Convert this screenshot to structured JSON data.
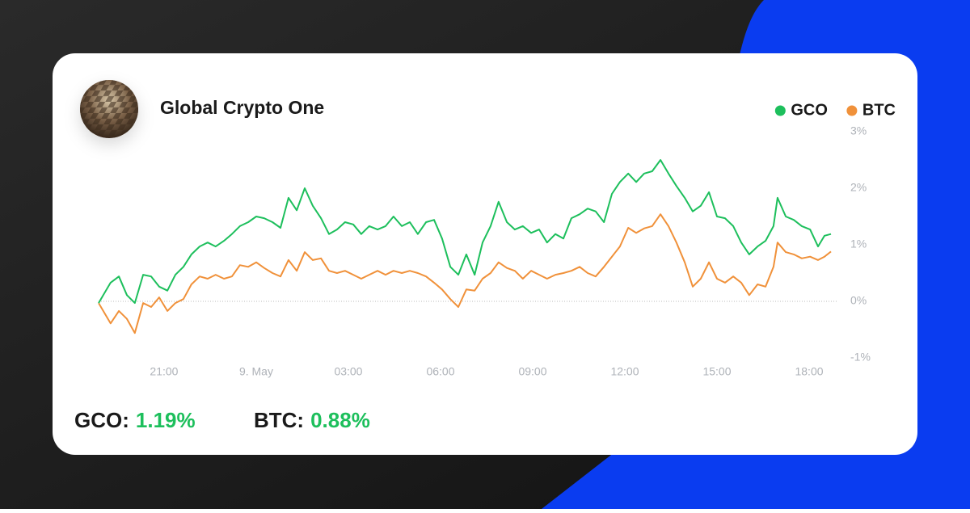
{
  "chart_data": {
    "type": "line",
    "title": "Global Crypto One",
    "x": [
      -5.13,
      -4.74,
      -4.47,
      -4.21,
      -3.95,
      -3.68,
      -3.42,
      -3.16,
      -2.89,
      -2.63,
      -2.37,
      -2.11,
      -1.84,
      -1.58,
      -1.32,
      -1.05,
      -0.79,
      -0.53,
      -0.26,
      0,
      0.26,
      0.53,
      0.79,
      1.05,
      1.32,
      1.58,
      1.84,
      2.11,
      2.37,
      2.63,
      2.89,
      3.16,
      3.42,
      3.68,
      3.95,
      4.21,
      4.47,
      4.74,
      5.0,
      5.26,
      5.53,
      5.79,
      6.05,
      6.32,
      6.58,
      6.84,
      7.11,
      7.37,
      7.63,
      7.89,
      8.16,
      8.42,
      8.68,
      8.95,
      9.21,
      9.47,
      9.74,
      10.0,
      10.26,
      10.53,
      10.79,
      11.05,
      11.32,
      11.58,
      11.84,
      12.11,
      12.37,
      12.63,
      12.89,
      13.16,
      13.42,
      13.68,
      13.95,
      14.21,
      14.47,
      14.74,
      15.0,
      15.26,
      15.53,
      15.79,
      16.05,
      16.32,
      16.58,
      16.84,
      16.97,
      17.24,
      17.5,
      17.76,
      18.03,
      18.29,
      18.5,
      18.71
    ],
    "series": [
      {
        "name": "GCO",
        "color": "#1dbf5c",
        "values": [
          -0.03,
          0.33,
          0.44,
          0.11,
          -0.03,
          0.47,
          0.44,
          0.26,
          0.19,
          0.47,
          0.61,
          0.83,
          0.97,
          1.04,
          0.97,
          1.07,
          1.19,
          1.33,
          1.4,
          1.5,
          1.47,
          1.4,
          1.3,
          1.83,
          1.61,
          2.0,
          1.69,
          1.47,
          1.19,
          1.27,
          1.4,
          1.36,
          1.19,
          1.33,
          1.27,
          1.33,
          1.5,
          1.33,
          1.4,
          1.19,
          1.4,
          1.44,
          1.11,
          0.61,
          0.47,
          0.83,
          0.47,
          1.04,
          1.33,
          1.76,
          1.4,
          1.27,
          1.33,
          1.21,
          1.27,
          1.04,
          1.19,
          1.11,
          1.47,
          1.54,
          1.64,
          1.59,
          1.4,
          1.9,
          2.11,
          2.26,
          2.11,
          2.26,
          2.3,
          2.5,
          2.26,
          2.04,
          1.83,
          1.59,
          1.69,
          1.93,
          1.5,
          1.47,
          1.33,
          1.04,
          0.83,
          0.97,
          1.07,
          1.33,
          1.83,
          1.5,
          1.44,
          1.33,
          1.27,
          0.97,
          1.16,
          1.19
        ]
      },
      {
        "name": "BTC",
        "color": "#f0913a",
        "values": [
          -0.03,
          -0.39,
          -0.17,
          -0.31,
          -0.56,
          -0.03,
          -0.1,
          0.07,
          -0.17,
          -0.03,
          0.04,
          0.3,
          0.44,
          0.4,
          0.47,
          0.4,
          0.44,
          0.64,
          0.61,
          0.69,
          0.59,
          0.5,
          0.44,
          0.73,
          0.54,
          0.87,
          0.73,
          0.76,
          0.54,
          0.5,
          0.54,
          0.47,
          0.4,
          0.47,
          0.54,
          0.47,
          0.54,
          0.5,
          0.54,
          0.5,
          0.44,
          0.33,
          0.21,
          0.04,
          -0.1,
          0.21,
          0.19,
          0.4,
          0.5,
          0.69,
          0.59,
          0.54,
          0.4,
          0.54,
          0.47,
          0.4,
          0.47,
          0.5,
          0.54,
          0.61,
          0.5,
          0.44,
          0.61,
          0.79,
          0.97,
          1.3,
          1.21,
          1.29,
          1.33,
          1.54,
          1.33,
          1.04,
          0.69,
          0.26,
          0.4,
          0.69,
          0.4,
          0.33,
          0.44,
          0.33,
          0.11,
          0.3,
          0.26,
          0.61,
          1.04,
          0.87,
          0.83,
          0.76,
          0.79,
          0.73,
          0.79,
          0.88
        ]
      }
    ],
    "xlim": [
      -5.13,
      18.71
    ],
    "xticks": [
      {
        "value": -3,
        "label": "21:00"
      },
      {
        "value": 0,
        "label": "9. May"
      },
      {
        "value": 3,
        "label": "03:00"
      },
      {
        "value": 6,
        "label": "06:00"
      },
      {
        "value": 9,
        "label": "09:00"
      },
      {
        "value": 12,
        "label": "12:00"
      },
      {
        "value": 15,
        "label": "15:00"
      },
      {
        "value": 18,
        "label": "18:00"
      }
    ],
    "ylim": [
      -1,
      3
    ],
    "yticks": [
      {
        "value": -1,
        "label": "-1%"
      },
      {
        "value": 0,
        "label": "0%"
      },
      {
        "value": 1,
        "label": "1%"
      },
      {
        "value": 2,
        "label": "2%"
      },
      {
        "value": 3,
        "label": "3%"
      }
    ],
    "grid": false,
    "legend": "top-right",
    "summary": [
      {
        "label": "GCO:",
        "value": "1.19%"
      },
      {
        "label": "BTC:",
        "value": "0.88%"
      }
    ]
  }
}
